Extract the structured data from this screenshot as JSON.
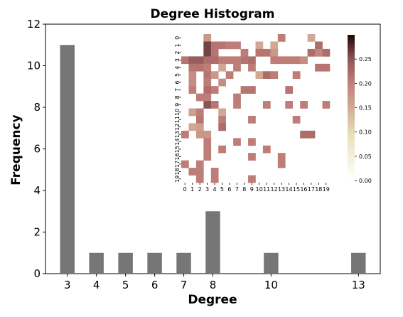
{
  "chart_data": [
    {
      "type": "bar",
      "title": "Degree Histogram",
      "xlabel": "Degree",
      "ylabel": "Frequency",
      "categories": [
        "3",
        "4",
        "5",
        "6",
        "7",
        "8",
        "10",
        "13"
      ],
      "x": [
        3,
        4,
        5,
        6,
        7,
        8,
        10,
        13
      ],
      "values": [
        11,
        1,
        1,
        1,
        1,
        3,
        1,
        1
      ],
      "xlim": [
        2.25,
        13.75
      ],
      "ylim": [
        0,
        12
      ],
      "yticks": [
        0,
        2,
        4,
        6,
        8,
        10,
        12
      ],
      "xticks": [
        3,
        4,
        5,
        6,
        7,
        8,
        10,
        13
      ],
      "bar_color": "#767676",
      "grid": false
    },
    {
      "type": "heatmap",
      "title": "",
      "xlabel": "",
      "ylabel": "",
      "x_ticks": [
        0,
        1,
        2,
        3,
        4,
        5,
        6,
        7,
        8,
        9,
        10,
        11,
        12,
        13,
        14,
        15,
        16,
        17,
        18,
        19
      ],
      "y_ticks": [
        0,
        1,
        2,
        3,
        4,
        5,
        6,
        7,
        8,
        9,
        10,
        11,
        12,
        13,
        14,
        15,
        16,
        17,
        18,
        19
      ],
      "cells": [
        [
          0,
          3,
          0.17
        ],
        [
          0,
          13,
          0.2
        ],
        [
          0,
          17,
          0.15
        ],
        [
          1,
          3,
          0.26
        ],
        [
          1,
          4,
          0.21
        ],
        [
          1,
          5,
          0.21
        ],
        [
          1,
          6,
          0.2
        ],
        [
          1,
          7,
          0.2
        ],
        [
          1,
          10,
          0.15
        ],
        [
          1,
          12,
          0.15
        ],
        [
          1,
          18,
          0.22
        ],
        [
          2,
          3,
          0.26
        ],
        [
          2,
          4,
          0.21
        ],
        [
          2,
          8,
          0.2
        ],
        [
          2,
          10,
          0.21
        ],
        [
          2,
          11,
          0.21
        ],
        [
          2,
          12,
          0.17
        ],
        [
          2,
          17,
          0.22
        ],
        [
          2,
          18,
          0.19
        ],
        [
          2,
          19,
          0.22
        ],
        [
          3,
          0,
          0.21
        ],
        [
          3,
          1,
          0.24
        ],
        [
          3,
          2,
          0.24
        ],
        [
          3,
          3,
          0.22
        ],
        [
          3,
          4,
          0.22
        ],
        [
          3,
          5,
          0.2
        ],
        [
          3,
          6,
          0.2
        ],
        [
          3,
          7,
          0.2
        ],
        [
          3,
          8,
          0.21
        ],
        [
          3,
          9,
          0.22
        ],
        [
          3,
          12,
          0.2
        ],
        [
          3,
          13,
          0.2
        ],
        [
          3,
          14,
          0.2
        ],
        [
          3,
          15,
          0.2
        ],
        [
          3,
          16,
          0.18
        ],
        [
          4,
          1,
          0.21
        ],
        [
          4,
          2,
          0.21
        ],
        [
          4,
          3,
          0.2
        ],
        [
          4,
          5,
          0.15
        ],
        [
          4,
          7,
          0.2
        ],
        [
          4,
          9,
          0.2
        ],
        [
          4,
          18,
          0.21
        ],
        [
          4,
          19,
          0.21
        ],
        [
          5,
          1,
          0.18
        ],
        [
          5,
          3,
          0.21
        ],
        [
          5,
          4,
          0.17
        ],
        [
          5,
          6,
          0.2
        ],
        [
          5,
          10,
          0.15
        ],
        [
          5,
          11,
          0.22
        ],
        [
          5,
          12,
          0.2
        ],
        [
          5,
          15,
          0.2
        ],
        [
          6,
          1,
          0.18
        ],
        [
          6,
          3,
          0.2
        ],
        [
          6,
          5,
          0.18
        ],
        [
          7,
          1,
          0.2
        ],
        [
          7,
          3,
          0.22
        ],
        [
          7,
          4,
          0.2
        ],
        [
          7,
          8,
          0.21
        ],
        [
          7,
          9,
          0.21
        ],
        [
          7,
          14,
          0.21
        ],
        [
          8,
          2,
          0.2
        ],
        [
          8,
          3,
          0.2
        ],
        [
          8,
          7,
          0.2
        ],
        [
          9,
          3,
          0.25
        ],
        [
          9,
          4,
          0.21
        ],
        [
          9,
          7,
          0.2
        ],
        [
          9,
          11,
          0.2
        ],
        [
          9,
          14,
          0.2
        ],
        [
          9,
          16,
          0.2
        ],
        [
          9,
          19,
          0.2
        ],
        [
          10,
          1,
          0.16
        ],
        [
          10,
          2,
          0.2
        ],
        [
          10,
          5,
          0.15
        ],
        [
          11,
          2,
          0.21
        ],
        [
          11,
          5,
          0.2
        ],
        [
          11,
          9,
          0.2
        ],
        [
          11,
          15,
          0.2
        ],
        [
          12,
          1,
          0.15
        ],
        [
          12,
          2,
          0.16
        ],
        [
          12,
          5,
          0.22
        ],
        [
          13,
          0,
          0.2
        ],
        [
          13,
          2,
          0.17
        ],
        [
          13,
          3,
          0.17
        ],
        [
          13,
          16,
          0.22
        ],
        [
          13,
          17,
          0.22
        ],
        [
          14,
          3,
          0.2
        ],
        [
          14,
          7,
          0.2
        ],
        [
          14,
          9,
          0.2
        ],
        [
          15,
          3,
          0.2
        ],
        [
          15,
          5,
          0.2
        ],
        [
          15,
          11,
          0.2
        ],
        [
          16,
          3,
          0.2
        ],
        [
          16,
          9,
          0.2
        ],
        [
          16,
          13,
          0.2
        ],
        [
          17,
          0,
          0.2
        ],
        [
          17,
          2,
          0.2
        ],
        [
          17,
          13,
          0.2
        ],
        [
          18,
          1,
          0.2
        ],
        [
          18,
          2,
          0.2
        ],
        [
          18,
          4,
          0.2
        ],
        [
          19,
          2,
          0.2
        ],
        [
          19,
          4,
          0.2
        ],
        [
          19,
          9,
          0.2
        ]
      ],
      "colorbar": {
        "ticks": [
          0.0,
          0.05,
          0.1,
          0.15,
          0.2,
          0.25
        ],
        "tick_labels": [
          "0.00",
          "0.05",
          "0.10",
          "0.15",
          "0.20",
          "0.25"
        ],
        "range": [
          0,
          0.3
        ],
        "colormap": "pink_r"
      }
    }
  ]
}
